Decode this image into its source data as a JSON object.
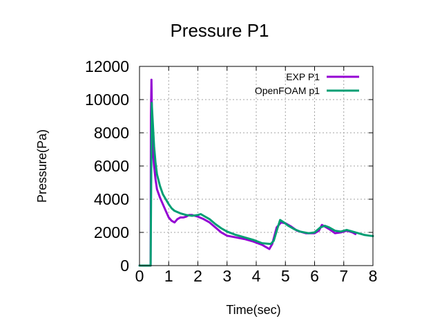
{
  "chart_data": {
    "type": "line",
    "title": "Pressure P1",
    "xlabel": "Time(sec)",
    "ylabel": "Pressure(Pa)",
    "xlim": [
      0,
      8
    ],
    "ylim": [
      0,
      12000
    ],
    "x_ticks": [
      0,
      1,
      2,
      3,
      4,
      5,
      6,
      7,
      8
    ],
    "y_ticks": [
      0,
      2000,
      4000,
      6000,
      8000,
      10000,
      12000
    ],
    "grid": true,
    "legend_position": "top-right",
    "series": [
      {
        "name": "EXP P1",
        "color": "#9400D3",
        "points": [
          [
            0.0,
            0
          ],
          [
            0.35,
            0
          ],
          [
            0.38,
            0
          ],
          [
            0.39,
            9000
          ],
          [
            0.41,
            11200
          ],
          [
            0.43,
            8500
          ],
          [
            0.45,
            7000
          ],
          [
            0.5,
            6000
          ],
          [
            0.55,
            5200
          ],
          [
            0.6,
            4600
          ],
          [
            0.7,
            4100
          ],
          [
            0.8,
            3700
          ],
          [
            0.9,
            3300
          ],
          [
            1.0,
            2900
          ],
          [
            1.1,
            2700
          ],
          [
            1.2,
            2600
          ],
          [
            1.3,
            2800
          ],
          [
            1.4,
            2900
          ],
          [
            1.5,
            2900
          ],
          [
            1.6,
            2950
          ],
          [
            1.7,
            3050
          ],
          [
            1.8,
            3050
          ],
          [
            2.0,
            2950
          ],
          [
            2.2,
            2800
          ],
          [
            2.4,
            2600
          ],
          [
            2.6,
            2300
          ],
          [
            2.8,
            2000
          ],
          [
            3.0,
            1800
          ],
          [
            3.3,
            1700
          ],
          [
            3.6,
            1600
          ],
          [
            3.9,
            1450
          ],
          [
            4.2,
            1250
          ],
          [
            4.45,
            1000
          ],
          [
            4.55,
            1300
          ],
          [
            4.7,
            2300
          ],
          [
            4.85,
            2600
          ],
          [
            5.0,
            2550
          ],
          [
            5.2,
            2350
          ],
          [
            5.4,
            2100
          ],
          [
            5.7,
            1950
          ],
          [
            6.0,
            1950
          ],
          [
            6.15,
            2100
          ],
          [
            6.25,
            2450
          ],
          [
            6.35,
            2350
          ],
          [
            6.5,
            2200
          ],
          [
            6.7,
            1950
          ],
          [
            6.9,
            2000
          ],
          [
            7.1,
            2100
          ],
          [
            7.3,
            2000
          ],
          [
            7.4,
            1900
          ]
        ]
      },
      {
        "name": "OpenFOAM p1",
        "color": "#009E73",
        "points": [
          [
            0.0,
            0
          ],
          [
            0.38,
            0
          ],
          [
            0.4,
            5000
          ],
          [
            0.42,
            9800
          ],
          [
            0.45,
            8800
          ],
          [
            0.5,
            7200
          ],
          [
            0.55,
            6200
          ],
          [
            0.6,
            5500
          ],
          [
            0.7,
            4800
          ],
          [
            0.8,
            4300
          ],
          [
            0.9,
            4000
          ],
          [
            1.0,
            3700
          ],
          [
            1.1,
            3450
          ],
          [
            1.2,
            3300
          ],
          [
            1.4,
            3150
          ],
          [
            1.6,
            3050
          ],
          [
            1.8,
            3000
          ],
          [
            2.0,
            3050
          ],
          [
            2.1,
            3100
          ],
          [
            2.2,
            3000
          ],
          [
            2.4,
            2800
          ],
          [
            2.6,
            2500
          ],
          [
            2.8,
            2250
          ],
          [
            3.0,
            2050
          ],
          [
            3.3,
            1850
          ],
          [
            3.6,
            1700
          ],
          [
            3.9,
            1550
          ],
          [
            4.2,
            1350
          ],
          [
            4.5,
            1300
          ],
          [
            4.6,
            1500
          ],
          [
            4.72,
            2200
          ],
          [
            4.82,
            2750
          ],
          [
            4.95,
            2600
          ],
          [
            5.1,
            2400
          ],
          [
            5.3,
            2200
          ],
          [
            5.5,
            2050
          ],
          [
            5.8,
            1950
          ],
          [
            6.0,
            2000
          ],
          [
            6.2,
            2300
          ],
          [
            6.35,
            2400
          ],
          [
            6.5,
            2300
          ],
          [
            6.7,
            2100
          ],
          [
            6.9,
            2050
          ],
          [
            7.1,
            2150
          ],
          [
            7.3,
            2050
          ],
          [
            7.5,
            1950
          ],
          [
            7.7,
            1850
          ],
          [
            7.9,
            1800
          ],
          [
            8.0,
            1780
          ]
        ]
      }
    ]
  }
}
